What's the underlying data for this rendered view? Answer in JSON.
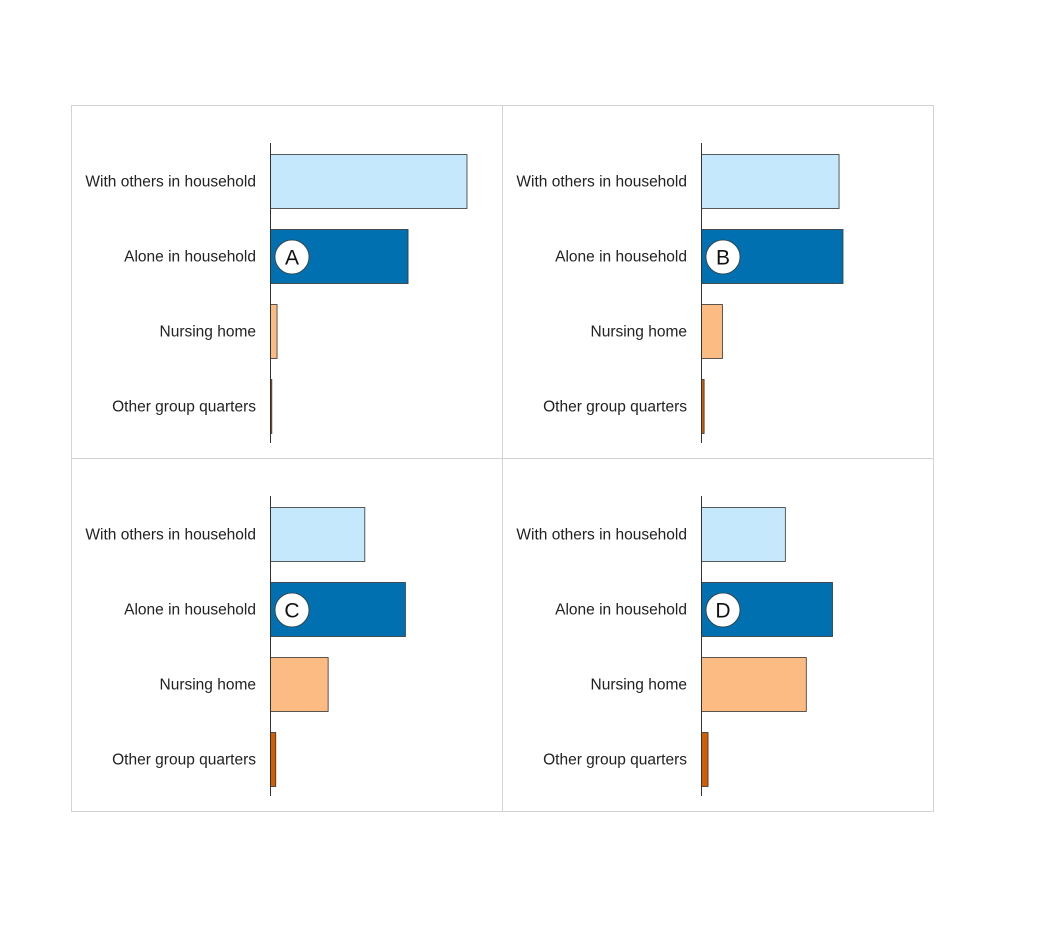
{
  "chart_data": [
    {
      "type": "bar",
      "panel_label": "A",
      "categories": [
        "With others in household",
        "Alone in household",
        "Nursing home",
        "Other group quarters"
      ],
      "values": [
        75,
        52.5,
        2.5,
        0.5
      ],
      "xlim": [
        0,
        100
      ]
    },
    {
      "type": "bar",
      "panel_label": "B",
      "categories": [
        "With others in household",
        "Alone in household",
        "Nursing home",
        "Other group quarters"
      ],
      "values": [
        52.5,
        54,
        8,
        1
      ],
      "xlim": [
        0,
        100
      ]
    },
    {
      "type": "bar",
      "panel_label": "C",
      "categories": [
        "With others in household",
        "Alone in household",
        "Nursing home",
        "Other group quarters"
      ],
      "values": [
        36,
        51.5,
        22,
        2
      ],
      "xlim": [
        0,
        100
      ]
    },
    {
      "type": "bar",
      "panel_label": "D",
      "categories": [
        "With others in household",
        "Alone in household",
        "Nursing home",
        "Other group quarters"
      ],
      "values": [
        32,
        50,
        40,
        2.5
      ],
      "xlim": [
        0,
        100
      ]
    }
  ],
  "colors": {
    "with_others": "#c6e8fd",
    "alone": "#0070b0",
    "nursing_home": "#fdbb84",
    "other_group_quarters": "#d15e00",
    "bar_outline": "#333333",
    "panel_border": "#d3d3d3",
    "axis_line": "#333333"
  }
}
